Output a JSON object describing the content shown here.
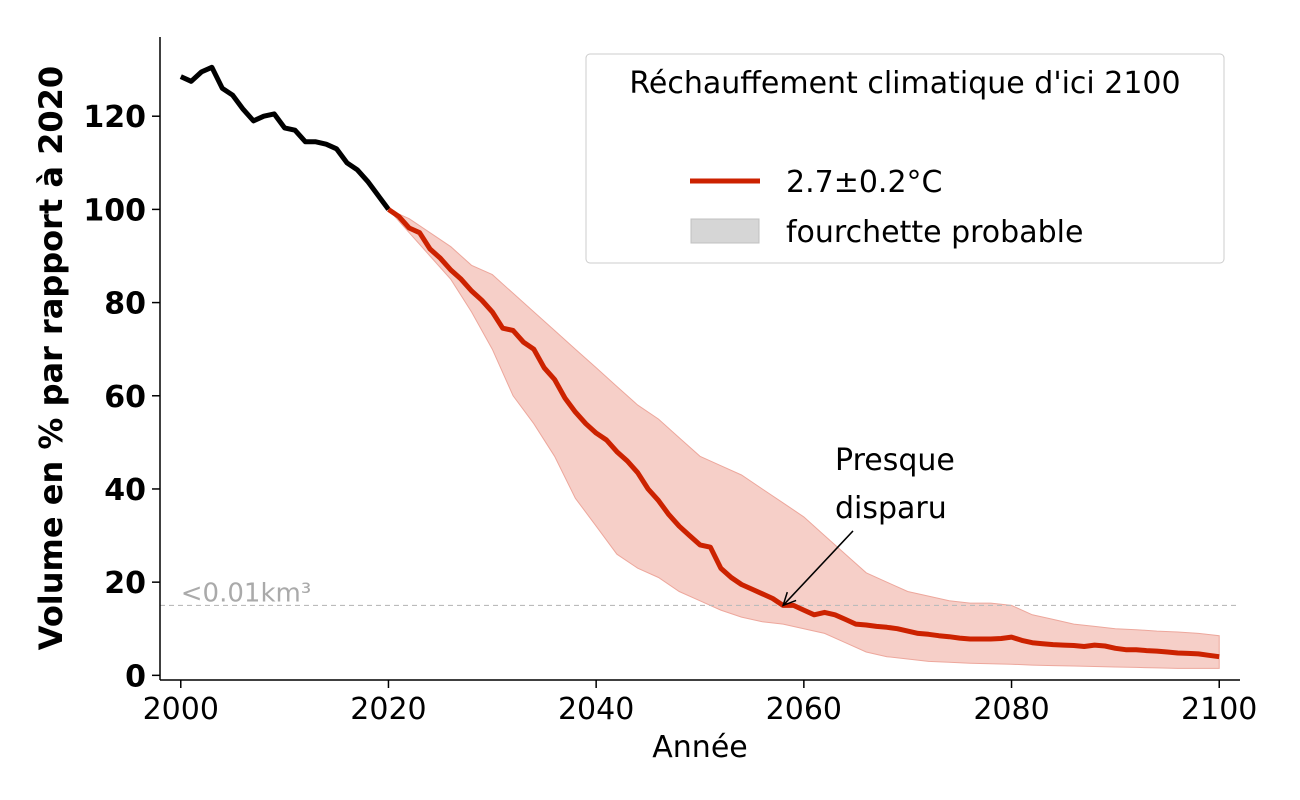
{
  "chart_data": {
    "type": "line",
    "xlabel": "Année",
    "ylabel": "Volume en % par rapport à 2020",
    "xlim": [
      1998,
      2102
    ],
    "ylim": [
      -1,
      137
    ],
    "x_ticks": [
      2000,
      2020,
      2040,
      2060,
      2080,
      2100
    ],
    "y_ticks": [
      0,
      20,
      40,
      60,
      80,
      100,
      120
    ],
    "grid": false,
    "legend": {
      "title": "Réchauffement climatique d'ici 2100",
      "placement": "top-right",
      "entries": [
        "2.7±0.2°C",
        "fourchette probable"
      ]
    },
    "threshold": {
      "y": 15,
      "label": "<0.01km³",
      "color": "#bbbbbb"
    },
    "annotation": {
      "text_lines": [
        "Presque",
        "disparu"
      ],
      "x": 2058,
      "y": 15,
      "text_x": 2063,
      "text_y": 37
    },
    "colors": {
      "historical": "#000000",
      "projection": "#cc2200",
      "band": "#f6cfc8",
      "band_edge": "#eda79c",
      "legend_patch": "#d6d6d6"
    },
    "historical": {
      "x": [
        2000,
        2001,
        2002,
        2003,
        2004,
        2005,
        2006,
        2007,
        2008,
        2009,
        2010,
        2011,
        2012,
        2013,
        2014,
        2015,
        2016,
        2017,
        2018,
        2019,
        2020
      ],
      "y": [
        128.5,
        127.5,
        129.5,
        130.5,
        126,
        124.5,
        121.5,
        119,
        120,
        120.5,
        117.5,
        117,
        114.5,
        114.5,
        114,
        113,
        110,
        108.5,
        106,
        103,
        100
      ]
    },
    "series": [
      {
        "name": "2.7±0.2°C",
        "x": [
          2020,
          2021,
          2022,
          2023,
          2024,
          2025,
          2026,
          2027,
          2028,
          2029,
          2030,
          2031,
          2032,
          2033,
          2034,
          2035,
          2036,
          2037,
          2038,
          2039,
          2040,
          2041,
          2042,
          2043,
          2044,
          2045,
          2046,
          2047,
          2048,
          2049,
          2050,
          2051,
          2052,
          2053,
          2054,
          2055,
          2056,
          2057,
          2058,
          2059,
          2060,
          2061,
          2062,
          2063,
          2064,
          2065,
          2066,
          2067,
          2068,
          2069,
          2070,
          2071,
          2072,
          2073,
          2074,
          2075,
          2076,
          2077,
          2078,
          2079,
          2080,
          2081,
          2082,
          2083,
          2084,
          2085,
          2086,
          2087,
          2088,
          2089,
          2090,
          2091,
          2092,
          2093,
          2094,
          2095,
          2096,
          2097,
          2098,
          2099,
          2100
        ],
        "y": [
          100,
          98.5,
          96,
          95,
          91.5,
          89.5,
          87,
          85,
          82.5,
          80.5,
          78,
          74.5,
          74,
          71.5,
          70,
          66,
          63.5,
          59.5,
          56.5,
          54,
          52,
          50.5,
          48,
          46,
          43.5,
          40,
          37.5,
          34.5,
          32,
          30,
          28,
          27.5,
          23,
          21,
          19.5,
          18.5,
          17.5,
          16.5,
          15,
          15,
          14,
          13,
          13.5,
          13,
          12,
          11,
          10.8,
          10.5,
          10.3,
          10,
          9.5,
          9,
          8.8,
          8.5,
          8.3,
          8,
          7.8,
          7.8,
          7.8,
          7.9,
          8.2,
          7.5,
          7,
          6.8,
          6.6,
          6.5,
          6.4,
          6.2,
          6.5,
          6.3,
          5.8,
          5.5,
          5.5,
          5.3,
          5.2,
          5,
          4.8,
          4.7,
          4.6,
          4.3,
          4
        ]
      }
    ],
    "band": {
      "name": "fourchette probable",
      "x": [
        2020,
        2022,
        2024,
        2026,
        2028,
        2030,
        2032,
        2034,
        2036,
        2038,
        2040,
        2042,
        2044,
        2046,
        2048,
        2050,
        2052,
        2054,
        2056,
        2058,
        2060,
        2062,
        2064,
        2066,
        2068,
        2070,
        2072,
        2074,
        2076,
        2078,
        2080,
        2082,
        2084,
        2086,
        2088,
        2090,
        2092,
        2094,
        2096,
        2098,
        2100
      ],
      "upper": [
        100,
        98,
        95,
        92,
        88,
        86,
        82,
        78,
        74,
        70,
        66,
        62,
        58,
        55,
        51,
        47,
        45,
        43,
        40,
        37,
        34,
        30,
        26,
        22,
        20,
        18,
        17,
        16,
        15.5,
        15.5,
        15,
        13,
        12,
        11,
        10.5,
        10,
        9.8,
        9.5,
        9.3,
        9,
        8.5
      ],
      "lower": [
        100,
        95,
        90,
        85,
        78,
        70,
        60,
        54,
        47,
        38,
        32,
        26,
        23,
        21,
        18,
        16,
        14,
        12.5,
        11.5,
        11,
        10,
        9,
        7,
        5,
        4,
        3.5,
        3,
        2.8,
        2.6,
        2.5,
        2.4,
        2.2,
        2.1,
        2,
        1.9,
        1.8,
        1.7,
        1.6,
        1.5,
        1.5,
        1.5
      ]
    }
  }
}
